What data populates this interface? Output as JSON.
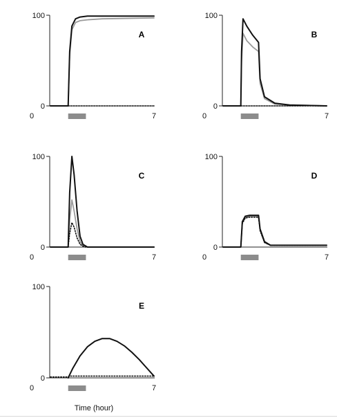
{
  "figure": {
    "xlabel": "Time (hour)"
  },
  "chart_data": [
    {
      "type": "line",
      "label": "A",
      "xlim": [
        0,
        7
      ],
      "ylim": [
        0,
        100
      ],
      "xticks": [
        "0",
        "7"
      ],
      "yticks": [
        "0",
        "100"
      ],
      "stimulus": {
        "start": 1.2,
        "end": 2.4
      },
      "series": [
        {
          "style": "solid-black",
          "x": [
            0,
            1.2,
            1.3,
            1.45,
            1.7,
            2.0,
            2.5,
            3.5,
            7
          ],
          "y": [
            0,
            0,
            60,
            88,
            96,
            98,
            99,
            99,
            99
          ]
        },
        {
          "style": "solid-gray",
          "x": [
            0,
            1.2,
            1.3,
            1.45,
            1.7,
            2.0,
            2.5,
            3.5,
            7
          ],
          "y": [
            0,
            0,
            56,
            84,
            92,
            94,
            95,
            96,
            97
          ]
        },
        {
          "style": "dotted-black",
          "x": [
            0,
            7
          ],
          "y": [
            0,
            0
          ]
        }
      ]
    },
    {
      "type": "line",
      "label": "B",
      "xlim": [
        0,
        7
      ],
      "ylim": [
        0,
        100
      ],
      "xticks": [
        "0",
        "7"
      ],
      "yticks": [
        "0",
        "100"
      ],
      "stimulus": {
        "start": 1.2,
        "end": 2.4
      },
      "series": [
        {
          "style": "solid-black",
          "x": [
            0,
            1.2,
            1.25,
            1.35,
            1.6,
            2.0,
            2.4,
            2.5,
            2.8,
            3.5,
            4.5,
            7
          ],
          "y": [
            0,
            0,
            60,
            96,
            88,
            78,
            70,
            30,
            10,
            3,
            1,
            0
          ]
        },
        {
          "style": "solid-gray",
          "x": [
            0,
            1.2,
            1.25,
            1.35,
            1.6,
            2.0,
            2.4,
            2.5,
            2.8,
            3.5,
            4.5,
            7
          ],
          "y": [
            0,
            0,
            50,
            80,
            72,
            65,
            60,
            25,
            8,
            2,
            1,
            0
          ]
        },
        {
          "style": "dotted-black",
          "x": [
            0,
            7
          ],
          "y": [
            0,
            0
          ]
        }
      ]
    },
    {
      "type": "line",
      "label": "C",
      "xlim": [
        0,
        7
      ],
      "ylim": [
        0,
        100
      ],
      "xticks": [
        "0",
        "7"
      ],
      "yticks": [
        "0",
        "100"
      ],
      "stimulus": {
        "start": 1.2,
        "end": 2.4
      },
      "series": [
        {
          "style": "solid-black",
          "x": [
            0,
            1.2,
            1.3,
            1.45,
            1.6,
            1.8,
            2.0,
            2.2,
            2.5,
            7
          ],
          "y": [
            0,
            0,
            60,
            100,
            80,
            40,
            12,
            3,
            0,
            0
          ]
        },
        {
          "style": "solid-gray",
          "x": [
            0,
            1.2,
            1.3,
            1.45,
            1.6,
            1.8,
            2.0,
            2.2,
            2.5,
            7
          ],
          "y": [
            0,
            0,
            30,
            52,
            40,
            20,
            6,
            1,
            0,
            0
          ]
        },
        {
          "style": "dotted-black",
          "x": [
            0,
            1.2,
            1.3,
            1.45,
            1.6,
            1.8,
            2.0,
            2.3,
            7
          ],
          "y": [
            0,
            0,
            15,
            27,
            22,
            10,
            3,
            0,
            0
          ]
        }
      ]
    },
    {
      "type": "line",
      "label": "D",
      "xlim": [
        0,
        7
      ],
      "ylim": [
        0,
        100
      ],
      "xticks": [
        "0",
        "7"
      ],
      "yticks": [
        "0",
        "100"
      ],
      "stimulus": {
        "start": 1.2,
        "end": 2.4
      },
      "series": [
        {
          "style": "solid-black",
          "x": [
            0,
            1.2,
            1.3,
            1.5,
            1.8,
            2.4,
            2.5,
            2.8,
            3.2,
            7
          ],
          "y": [
            0,
            0,
            28,
            34,
            35,
            35,
            20,
            6,
            2,
            2
          ]
        },
        {
          "style": "solid-gray",
          "x": [
            0,
            1.2,
            1.3,
            1.5,
            1.8,
            2.4,
            2.5,
            2.8,
            3.2,
            7
          ],
          "y": [
            0,
            0,
            27,
            33,
            34,
            34,
            19,
            5,
            2,
            2
          ]
        },
        {
          "style": "dotted-black",
          "x": [
            0,
            1.2,
            1.3,
            1.5,
            1.8,
            2.4,
            2.5,
            2.8,
            3.2,
            7
          ],
          "y": [
            0,
            0,
            26,
            32,
            33,
            33,
            18,
            5,
            2,
            2
          ]
        }
      ]
    },
    {
      "type": "line",
      "label": "E",
      "xlim": [
        0,
        7
      ],
      "ylim": [
        0,
        100
      ],
      "xticks": [
        "0",
        "7"
      ],
      "yticks": [
        "0",
        "100"
      ],
      "stimulus": {
        "start": 1.2,
        "end": 2.4
      },
      "series": [
        {
          "style": "solid-black",
          "x": [
            1.2,
            1.5,
            2.0,
            2.5,
            3.0,
            3.5,
            4.0,
            4.5,
            5.0,
            5.5,
            6.0,
            6.5,
            7.0
          ],
          "y": [
            0,
            10,
            24,
            34,
            40,
            43,
            43,
            40,
            35,
            28,
            20,
            11,
            2
          ]
        },
        {
          "style": "dotted-black",
          "x": [
            0,
            1.2,
            1.3,
            7
          ],
          "y": [
            1,
            1,
            2,
            2
          ]
        }
      ]
    }
  ]
}
